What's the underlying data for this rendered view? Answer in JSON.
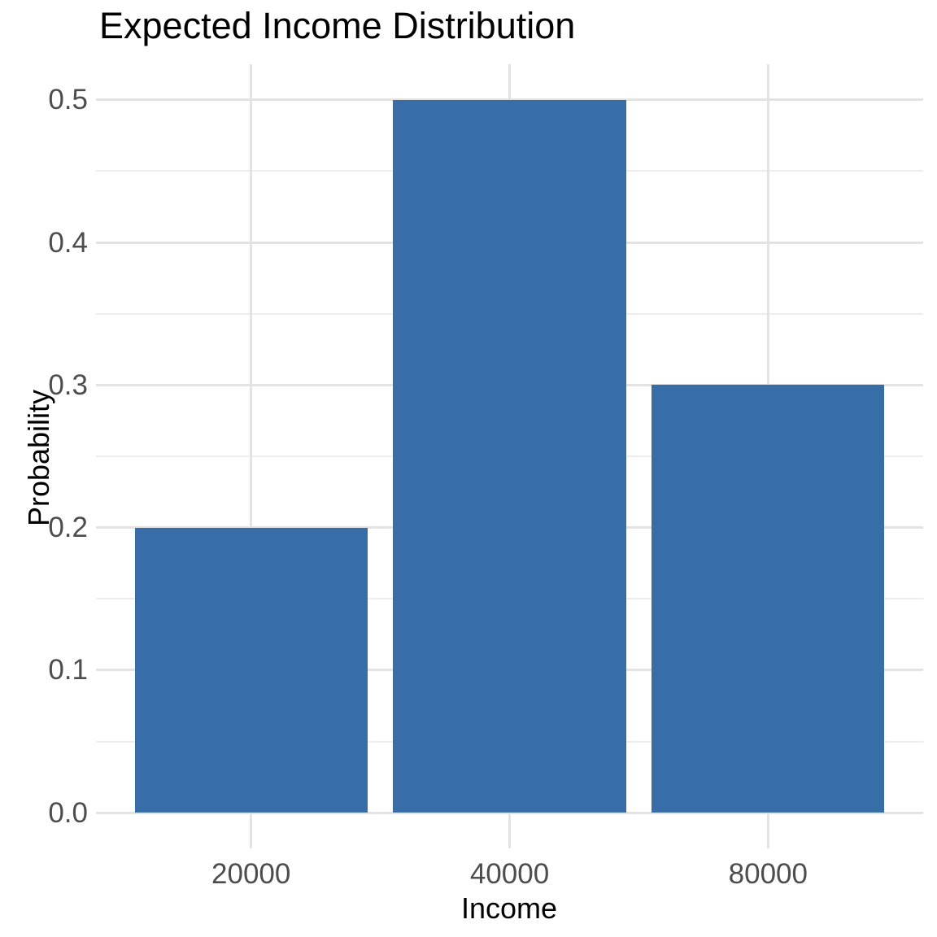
{
  "chart_data": {
    "type": "bar",
    "title": "Expected Income Distribution",
    "xlabel": "Income",
    "ylabel": "Probability",
    "categories": [
      "20000",
      "40000",
      "80000"
    ],
    "values": [
      0.2,
      0.5,
      0.3
    ],
    "ytick_values": [
      0.0,
      0.1,
      0.2,
      0.3,
      0.4,
      0.5
    ],
    "ytick_labels": [
      "0.0",
      "0.1",
      "0.2",
      "0.3",
      "0.4",
      "0.5"
    ],
    "ylim": [
      0,
      0.5
    ],
    "grid": "on",
    "legend_position": "none",
    "colors": {
      "bar_fill": "#386EA7",
      "grid_major": "#e3e3e3",
      "grid_minor": "#ededed",
      "tick_label": "#4d4d4d",
      "text": "#000000",
      "background": "#ffffff"
    }
  }
}
